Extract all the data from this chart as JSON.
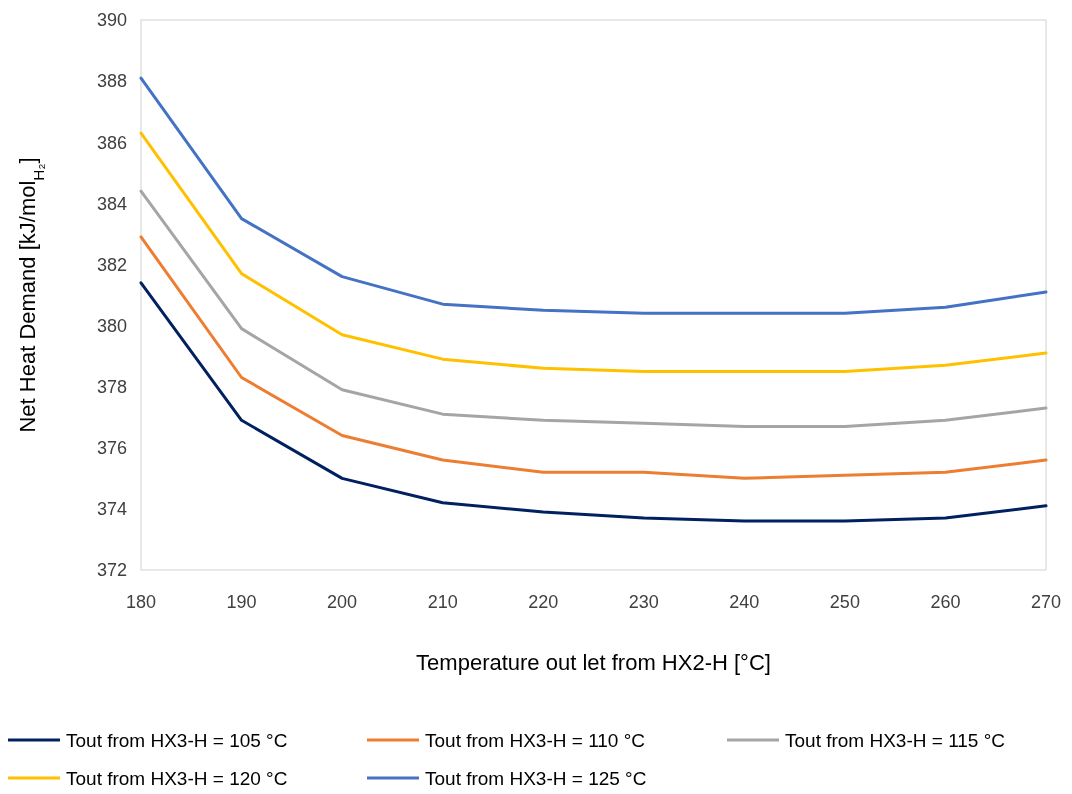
{
  "chart_data": {
    "type": "line",
    "xlabel": "Temperature out let from HX2-H [°C]",
    "ylabel": "Net Heat Demand [kJ/mol$_{H₂}$]",
    "x": [
      180,
      190,
      200,
      210,
      220,
      230,
      240,
      250,
      260,
      270
    ],
    "xlim": [
      180,
      270
    ],
    "xticks": [
      180,
      190,
      200,
      210,
      220,
      230,
      240,
      250,
      260,
      270
    ],
    "ylim": [
      372,
      390
    ],
    "yticks": [
      372,
      374,
      376,
      378,
      380,
      382,
      384,
      386,
      388,
      390
    ],
    "grid": false,
    "legend": "bottom",
    "marker": "none",
    "line_style": "solid",
    "series": [
      {
        "name": "Tout from HX3-H = 105 °C",
        "color": "#002060",
        "values": [
          381.4,
          376.9,
          375.0,
          374.2,
          373.9,
          373.7,
          373.6,
          373.6,
          373.7,
          374.1
        ]
      },
      {
        "name": "Tout from HX3-H = 110 °C",
        "color": "#ed7d31",
        "values": [
          382.9,
          378.3,
          376.4,
          375.6,
          375.2,
          375.2,
          375.0,
          375.1,
          375.2,
          375.6
        ]
      },
      {
        "name": "Tout from HX3-H = 115 °C",
        "color": "#a5a5a5",
        "values": [
          384.4,
          379.9,
          377.9,
          377.1,
          376.9,
          376.8,
          376.7,
          376.7,
          376.9,
          377.3
        ]
      },
      {
        "name": "Tout from HX3-H = 120 °C",
        "color": "#ffc000",
        "values": [
          386.3,
          381.7,
          379.7,
          378.9,
          378.6,
          378.5,
          378.5,
          378.5,
          378.7,
          379.1
        ]
      },
      {
        "name": "Tout from HX3-H = 125 °C",
        "color": "#4472c4",
        "values": [
          388.1,
          383.5,
          381.6,
          380.7,
          380.5,
          380.4,
          380.4,
          380.4,
          380.6,
          381.1
        ]
      }
    ]
  }
}
